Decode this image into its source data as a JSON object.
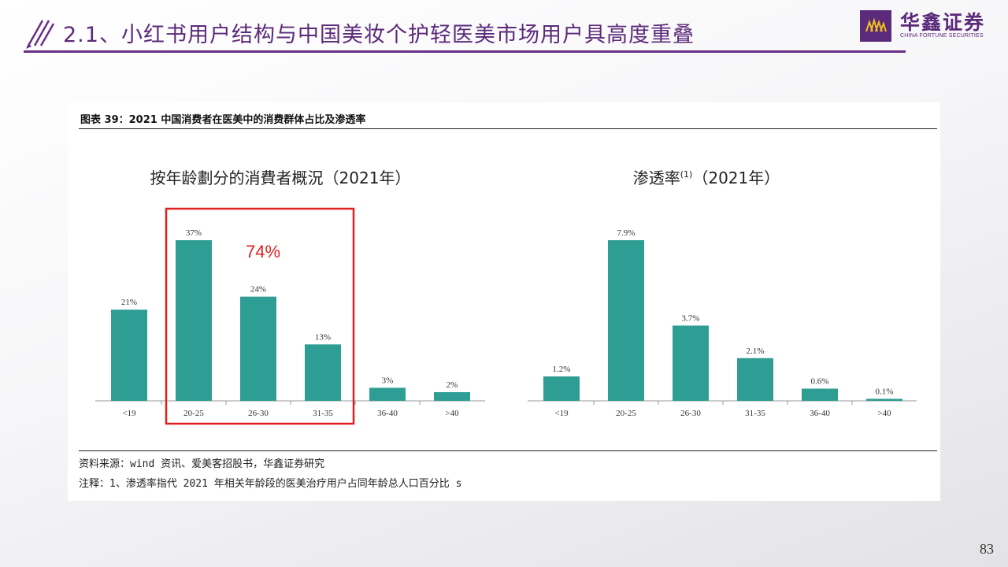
{
  "slide": {
    "title": "2.1、小红书用户结构与中国美妆个护轻医美市场用户具高度重叠",
    "page_number": "83"
  },
  "logo": {
    "name": "华鑫证券",
    "subtitle": "CHINA FORTUNE SECURITIES",
    "brand_color": "#5b2a7a"
  },
  "figure": {
    "caption": "图表 39：2021 中国消费者在医美中的消费群体占比及渗透率",
    "source": "资料来源：wind 资讯、爱美客招股书，华鑫证券研究",
    "note": "注释：1、渗透率指代 2021 年相关年龄段的医美治疗用户占同年龄总人口百分比 s",
    "bar_color": "#2e9e94",
    "highlight_color": "#e02020"
  },
  "chart_data": [
    {
      "type": "bar",
      "title": "按年龄劃分的消費者概況（2021年）",
      "categories": [
        "<19",
        "20-25",
        "26-30",
        "31-35",
        "36-40",
        ">40"
      ],
      "values": [
        21,
        37,
        24,
        13,
        3,
        2
      ],
      "value_labels": [
        "21%",
        "37%",
        "24%",
        "13%",
        "3%",
        "2%"
      ],
      "unit": "%",
      "highlight": {
        "categories": [
          "20-25",
          "26-30",
          "31-35"
        ],
        "label": "74%"
      },
      "grid": false
    },
    {
      "type": "bar",
      "title": "渗透率",
      "title_superscript": "(1)",
      "title_suffix": "（2021年）",
      "categories": [
        "<19",
        "20-25",
        "26-30",
        "31-35",
        "36-40",
        ">40"
      ],
      "values": [
        1.2,
        7.9,
        3.7,
        2.1,
        0.6,
        0.1
      ],
      "value_labels": [
        "1.2%",
        "7.9%",
        "3.7%",
        "2.1%",
        "0.6%",
        "0.1%"
      ],
      "unit": "%",
      "grid": false
    }
  ]
}
